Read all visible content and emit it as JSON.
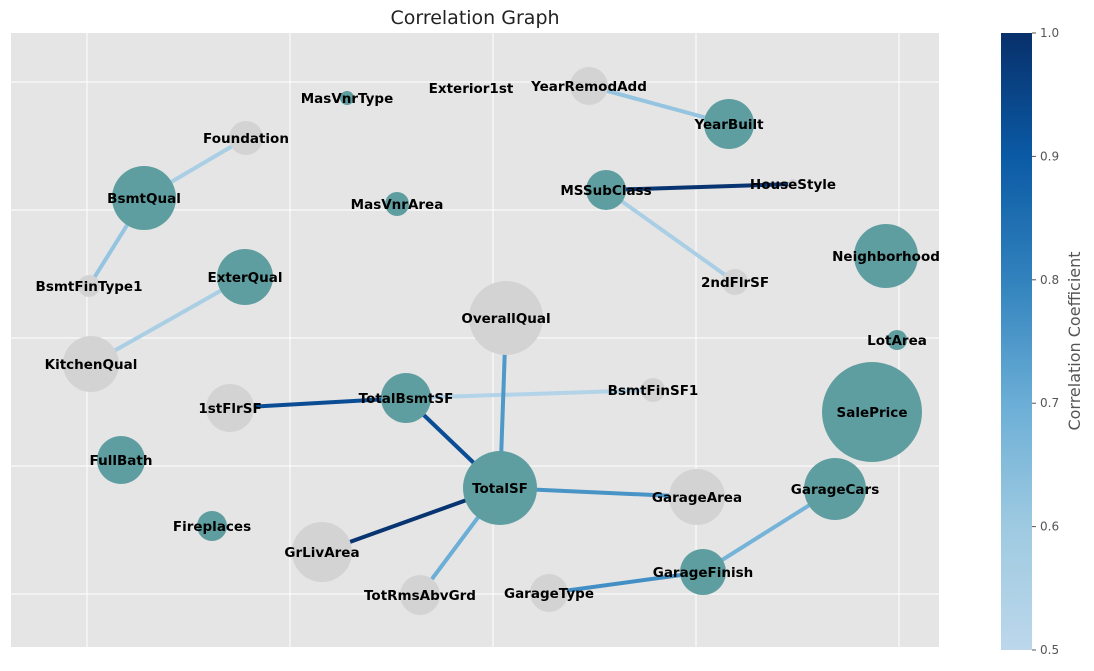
{
  "title": "Correlation Graph",
  "colorbar": {
    "label": "Correlation Coefficient",
    "min": 0.5,
    "max": 1.0,
    "ticks": [
      "0.5",
      "0.6",
      "0.7",
      "0.8",
      "0.9",
      "1.0"
    ],
    "color_low": "#bcd7eb",
    "color_high": "#08306b"
  },
  "colors": {
    "background": "#e5e5e5",
    "grid": "#ffffff",
    "node_teal": "#5f9ea0",
    "node_gray": "#d3d3d3"
  },
  "nodes": [
    {
      "id": "MasVnrType",
      "label": "MasVnrType",
      "color": "teal"
    },
    {
      "id": "Exterior1st",
      "label": "Exterior1st",
      "color": "gray"
    },
    {
      "id": "YearRemodAdd",
      "label": "YearRemodAdd",
      "color": "gray"
    },
    {
      "id": "YearBuilt",
      "label": "YearBuilt",
      "color": "teal"
    },
    {
      "id": "Foundation",
      "label": "Foundation",
      "color": "gray"
    },
    {
      "id": "BsmtQual",
      "label": "BsmtQual",
      "color": "teal"
    },
    {
      "id": "MSSubClass",
      "label": "MSSubClass",
      "color": "teal"
    },
    {
      "id": "HouseStyle",
      "label": "HouseStyle",
      "color": "gray"
    },
    {
      "id": "MasVnrArea",
      "label": "MasVnrArea",
      "color": "teal"
    },
    {
      "id": "Neighborhood",
      "label": "Neighborhood",
      "color": "teal"
    },
    {
      "id": "ExterQual",
      "label": "ExterQual",
      "color": "teal"
    },
    {
      "id": "2ndFlrSF",
      "label": "2ndFlrSF",
      "color": "gray"
    },
    {
      "id": "BsmtFinType1",
      "label": "BsmtFinType1",
      "color": "gray"
    },
    {
      "id": "OverallQual",
      "label": "OverallQual",
      "color": "gray"
    },
    {
      "id": "LotArea",
      "label": "LotArea",
      "color": "teal"
    },
    {
      "id": "KitchenQual",
      "label": "KitchenQual",
      "color": "gray"
    },
    {
      "id": "TotalBsmtSF",
      "label": "TotalBsmtSF",
      "color": "teal"
    },
    {
      "id": "BsmtFinSF1",
      "label": "BsmtFinSF1",
      "color": "gray"
    },
    {
      "id": "1stFlrSF",
      "label": "1stFlrSF",
      "color": "gray"
    },
    {
      "id": "SalePrice",
      "label": "SalePrice",
      "color": "teal"
    },
    {
      "id": "FullBath",
      "label": "FullBath",
      "color": "teal"
    },
    {
      "id": "TotalSF",
      "label": "TotalSF",
      "color": "teal"
    },
    {
      "id": "GarageArea",
      "label": "GarageArea",
      "color": "gray"
    },
    {
      "id": "GarageCars",
      "label": "GarageCars",
      "color": "teal"
    },
    {
      "id": "Fireplaces",
      "label": "Fireplaces",
      "color": "teal"
    },
    {
      "id": "GrLivArea",
      "label": "GrLivArea",
      "color": "gray"
    },
    {
      "id": "GarageFinish",
      "label": "GarageFinish",
      "color": "teal"
    },
    {
      "id": "GarageType",
      "label": "GarageType",
      "color": "gray"
    },
    {
      "id": "TotRmsAbvGrd",
      "label": "TotRmsAbvGrd",
      "color": "gray"
    }
  ],
  "edges": [
    {
      "source": "YearRemodAdd",
      "target": "YearBuilt",
      "corr": 0.62
    },
    {
      "source": "Foundation",
      "target": "BsmtQual",
      "corr": 0.56
    },
    {
      "source": "BsmtQual",
      "target": "BsmtFinType1",
      "corr": 0.62
    },
    {
      "source": "MSSubClass",
      "target": "HouseStyle",
      "corr": 0.99
    },
    {
      "source": "MSSubClass",
      "target": "2ndFlrSF",
      "corr": 0.56
    },
    {
      "source": "ExterQual",
      "target": "KitchenQual",
      "corr": 0.56
    },
    {
      "source": "1stFlrSF",
      "target": "TotalBsmtSF",
      "corr": 0.93
    },
    {
      "source": "TotalBsmtSF",
      "target": "BsmtFinSF1",
      "corr": 0.53
    },
    {
      "source": "TotalBsmtSF",
      "target": "TotalSF",
      "corr": 0.93
    },
    {
      "source": "OverallQual",
      "target": "TotalSF",
      "corr": 0.75
    },
    {
      "source": "TotalSF",
      "target": "GarageArea",
      "corr": 0.76
    },
    {
      "source": "TotalSF",
      "target": "GrLivArea",
      "corr": 0.99
    },
    {
      "source": "TotalSF",
      "target": "TotRmsAbvGrd",
      "corr": 0.7
    },
    {
      "source": "GarageCars",
      "target": "GarageFinish",
      "corr": 0.68
    },
    {
      "source": "GarageFinish",
      "target": "GarageType",
      "corr": 0.77
    }
  ]
}
